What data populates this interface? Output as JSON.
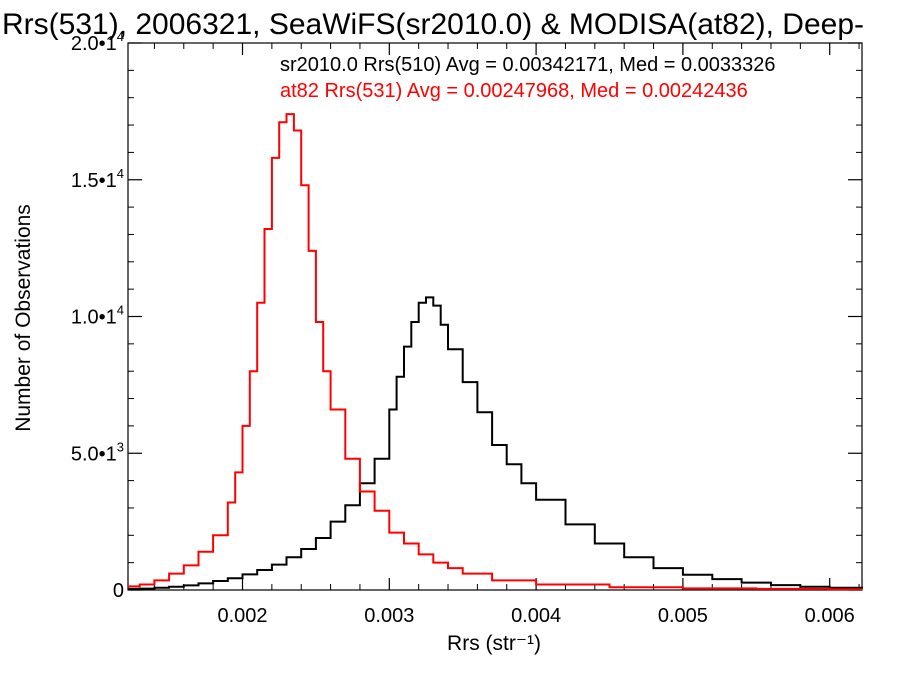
{
  "chart_data": {
    "type": "line",
    "title": "Rrs(531), 2006321, SeaWiFS(sr2010.0) & MODISA(at82), Deep-",
    "xlabel": "Rrs (str⁻¹)",
    "ylabel": "Number of Observations",
    "xlim": [
      0.00122,
      0.00622
    ],
    "ylim": [
      0,
      20000
    ],
    "xticks": [
      0.002,
      0.003,
      0.004,
      0.005,
      0.006
    ],
    "xtick_labels": [
      "0.002",
      "0.003",
      "0.004",
      "0.005",
      "0.006"
    ],
    "yticks": [
      0,
      5000,
      10000,
      15000,
      20000
    ],
    "ytick_labels": [
      {
        "mantissa": "0",
        "exp": ""
      },
      {
        "mantissa": "5.0•1",
        "exp": "3"
      },
      {
        "mantissa": "1.0•1",
        "exp": "4"
      },
      {
        "mantissa": "1.5•1",
        "exp": "4"
      },
      {
        "mantissa": "2.0•1",
        "exp": "4"
      }
    ],
    "grid": false,
    "step": true,
    "series": [
      {
        "name": "sr2010.0 Rrs(510) Avg = 0.00342171, Med = 0.0033326",
        "color": "#000000",
        "x": [
          0.00122,
          0.0013,
          0.0014,
          0.0015,
          0.0016,
          0.0017,
          0.0018,
          0.0019,
          0.002,
          0.0021,
          0.0022,
          0.0023,
          0.0024,
          0.0025,
          0.0026,
          0.0027,
          0.0028,
          0.0029,
          0.003,
          0.00305,
          0.0031,
          0.00315,
          0.0032,
          0.00325,
          0.0033,
          0.00335,
          0.0034,
          0.0035,
          0.0036,
          0.0037,
          0.0038,
          0.0039,
          0.004,
          0.0042,
          0.0044,
          0.0046,
          0.0048,
          0.005,
          0.0052,
          0.0054,
          0.0056,
          0.0058,
          0.006,
          0.00622
        ],
        "y": [
          40,
          50,
          80,
          120,
          170,
          240,
          330,
          430,
          570,
          730,
          930,
          1200,
          1500,
          1900,
          2500,
          3100,
          3900,
          4800,
          6600,
          7800,
          8900,
          9800,
          10500,
          10700,
          10400,
          9700,
          8800,
          7600,
          6500,
          5300,
          4600,
          3900,
          3300,
          2400,
          1700,
          1200,
          800,
          560,
          400,
          270,
          180,
          120,
          80,
          60
        ]
      },
      {
        "name": "at82 Rrs(531) Avg = 0.00247968, Med = 0.00242436",
        "color": "#ff0000",
        "x": [
          0.00122,
          0.0013,
          0.0014,
          0.0015,
          0.0016,
          0.0017,
          0.0018,
          0.0019,
          0.00195,
          0.002,
          0.00205,
          0.0021,
          0.00215,
          0.0022,
          0.00225,
          0.0023,
          0.00235,
          0.0024,
          0.00245,
          0.0025,
          0.00255,
          0.0026,
          0.0027,
          0.0028,
          0.0029,
          0.003,
          0.0031,
          0.0032,
          0.0033,
          0.0034,
          0.0035,
          0.0037,
          0.004,
          0.0045,
          0.005,
          0.0055,
          0.006,
          0.00622
        ],
        "y": [
          130,
          200,
          350,
          600,
          900,
          1400,
          2000,
          3200,
          4300,
          6000,
          8000,
          10500,
          13200,
          15800,
          17100,
          17400,
          16800,
          14800,
          12400,
          9800,
          8000,
          6600,
          4800,
          3600,
          2900,
          2100,
          1700,
          1300,
          1000,
          800,
          600,
          350,
          200,
          100,
          60,
          40,
          30,
          30
        ]
      }
    ]
  }
}
